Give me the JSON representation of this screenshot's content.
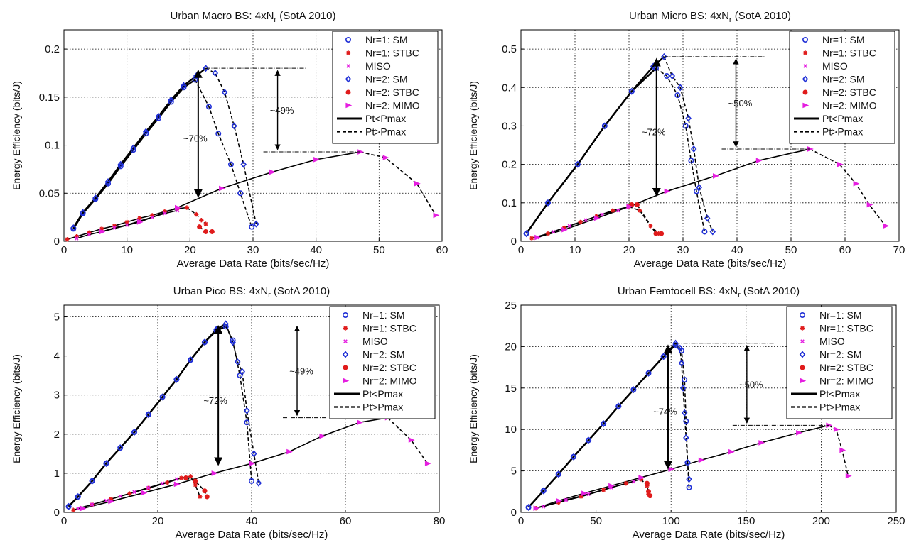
{
  "figure": {
    "colors": {
      "sm": "#1f2fd6",
      "stbc": "#e01b1b",
      "miso": "#e51ee0",
      "mimo": "#e51ee0",
      "line": "#000000",
      "grid": "#000000"
    }
  },
  "chart_data": [
    {
      "type": "line",
      "title": "Urban Macro BS: 4xN",
      "title_sub": "r",
      "title_suffix": " (SotA 2010)",
      "xlabel": "Average Data Rate (bits/sec/Hz)",
      "ylabel": "Energy Efficiency (bits/J)",
      "xlim": [
        0,
        60
      ],
      "ylim": [
        0,
        0.22
      ],
      "xticks": [
        0,
        10,
        20,
        30,
        40,
        50,
        60
      ],
      "xtick_labels": [
        "0",
        "10",
        "20",
        "30",
        "40",
        "50",
        "60"
      ],
      "yticks": [
        0,
        0.05,
        0.1,
        0.15,
        0.2
      ],
      "ytick_labels": [
        "0",
        "0.05",
        "0.1",
        "0.15",
        "0.2"
      ],
      "grid": true,
      "legend_position": "top-right",
      "legend": [
        "Nr=1: SM",
        "Nr=1: STBC",
        "MISO",
        "Nr=2: SM",
        "Nr=2: STBC",
        "Nr=2: MIMO",
        "Pt<Pmax",
        "Pt>Pmax"
      ],
      "annotations": [
        "~70%",
        "~49%"
      ],
      "series": [
        {
          "name": "Nr=1: SM",
          "marker": "circle",
          "color": "#1f2fd6",
          "x": [
            1.5,
            3,
            5,
            7,
            9,
            11,
            13,
            15,
            17,
            19,
            20.8,
            23,
            24.5,
            26.5,
            28,
            29.8
          ],
          "y": [
            0.013,
            0.029,
            0.044,
            0.06,
            0.078,
            0.095,
            0.112,
            0.128,
            0.145,
            0.16,
            0.168,
            0.14,
            0.112,
            0.08,
            0.05,
            0.015
          ]
        },
        {
          "name": "Nr=1: STBC",
          "marker": "star",
          "color": "#e01b1b",
          "x": [
            0.5,
            2,
            4,
            6,
            8,
            10,
            12,
            14,
            16,
            18,
            19.5,
            21,
            21.8,
            22.5
          ],
          "y": [
            0.002,
            0.005,
            0.009,
            0.013,
            0.016,
            0.02,
            0.024,
            0.027,
            0.031,
            0.034,
            0.035,
            0.028,
            0.022,
            0.018
          ]
        },
        {
          "name": "MISO",
          "marker": "x",
          "color": "#e51ee0",
          "x": [
            2,
            4,
            6,
            8,
            10,
            12,
            14,
            16,
            18
          ],
          "y": [
            0.003,
            0.007,
            0.01,
            0.014,
            0.017,
            0.021,
            0.025,
            0.029,
            0.032
          ]
        },
        {
          "name": "Nr=2: SM",
          "marker": "diamond",
          "color": "#1f2fd6",
          "x": [
            1.5,
            3,
            5,
            7,
            9,
            11,
            13,
            15,
            17,
            19,
            21,
            22.5,
            24,
            25.5,
            27,
            28.5,
            30.5
          ],
          "y": [
            0.014,
            0.03,
            0.045,
            0.062,
            0.08,
            0.097,
            0.114,
            0.13,
            0.147,
            0.162,
            0.172,
            0.18,
            0.175,
            0.155,
            0.12,
            0.08,
            0.018
          ]
        },
        {
          "name": "Nr=2: STBC",
          "marker": "dot",
          "color": "#e01b1b",
          "x": [
            21.5,
            22.5,
            23.5
          ],
          "y": [
            0.015,
            0.01,
            0.01
          ]
        },
        {
          "name": "Nr=2: MIMO",
          "marker": "triangle",
          "color": "#e51ee0",
          "x": [
            6,
            12,
            18,
            25,
            33,
            40,
            47,
            51,
            56,
            59
          ],
          "y": [
            0.01,
            0.02,
            0.035,
            0.055,
            0.072,
            0.085,
            0.093,
            0.087,
            0.06,
            0.027
          ]
        }
      ]
    },
    {
      "type": "line",
      "title": "Urban Micro BS: 4xN",
      "title_sub": "r",
      "title_suffix": " (SotA 2010)",
      "xlabel": "Average Data Rate (bits/sec/Hz)",
      "ylabel": "Energy Efficiency (bits/J)",
      "xlim": [
        0,
        70
      ],
      "ylim": [
        0,
        0.55
      ],
      "xticks": [
        0,
        10,
        20,
        30,
        40,
        50,
        60,
        70
      ],
      "xtick_labels": [
        "0",
        "10",
        "20",
        "30",
        "40",
        "50",
        "60",
        "70"
      ],
      "yticks": [
        0,
        0.1,
        0.2,
        0.3,
        0.4,
        0.5
      ],
      "ytick_labels": [
        "0",
        "0.1",
        "0.2",
        "0.3",
        "0.4",
        "0.5"
      ],
      "grid": true,
      "legend_position": "top-right",
      "legend": [
        "Nr=1: SM",
        "Nr=1: STBC",
        "MISO",
        "Nr=2: SM",
        "Nr=2: STBC",
        "Nr=2: MIMO",
        "Pt<Pmax",
        "Pt>Pmax"
      ],
      "annotations": [
        "~72%",
        "~50%"
      ],
      "series": [
        {
          "name": "Nr=1: SM",
          "marker": "circle",
          "color": "#1f2fd6",
          "x": [
            1,
            5,
            10.5,
            15.5,
            20.5,
            25,
            27,
            29,
            30.5,
            31.5,
            32.5,
            34
          ],
          "y": [
            0.02,
            0.1,
            0.2,
            0.3,
            0.39,
            0.45,
            0.43,
            0.38,
            0.3,
            0.21,
            0.13,
            0.025
          ]
        },
        {
          "name": "Nr=1: STBC",
          "marker": "star",
          "color": "#e01b1b",
          "x": [
            2,
            5,
            8,
            11,
            14,
            17,
            20,
            22,
            24,
            25.5
          ],
          "y": [
            0.008,
            0.02,
            0.035,
            0.05,
            0.065,
            0.08,
            0.09,
            0.08,
            0.04,
            0.02
          ]
        },
        {
          "name": "MISO",
          "marker": "x",
          "color": "#e51ee0",
          "x": [
            3,
            6,
            9,
            12,
            15,
            18
          ],
          "y": [
            0.01,
            0.025,
            0.04,
            0.055,
            0.07,
            0.08
          ]
        },
        {
          "name": "Nr=2: SM",
          "marker": "diamond",
          "color": "#1f2fd6",
          "x": [
            1,
            5,
            10.5,
            15.5,
            20.5,
            24.5,
            26.5,
            28,
            29.5,
            31,
            32,
            33,
            34.5,
            35.5
          ],
          "y": [
            0.02,
            0.1,
            0.2,
            0.3,
            0.39,
            0.455,
            0.48,
            0.43,
            0.4,
            0.32,
            0.24,
            0.14,
            0.06,
            0.025
          ]
        },
        {
          "name": "Nr=2: STBC",
          "marker": "dot",
          "color": "#e01b1b",
          "x": [
            20.5,
            21.5,
            25,
            26
          ],
          "y": [
            0.095,
            0.095,
            0.02,
            0.02
          ]
        },
        {
          "name": "Nr=2: MIMO",
          "marker": "triangle",
          "color": "#e51ee0",
          "x": [
            3,
            8,
            14,
            20,
            27,
            36,
            44,
            53.5,
            59,
            62,
            64.5,
            67.5
          ],
          "y": [
            0.01,
            0.03,
            0.06,
            0.09,
            0.13,
            0.17,
            0.21,
            0.24,
            0.2,
            0.15,
            0.095,
            0.04
          ]
        }
      ]
    },
    {
      "type": "line",
      "title": "Urban Pico BS: 4xN",
      "title_sub": "r",
      "title_suffix": " (SotA 2010)",
      "xlabel": "Average Data Rate (bits/sec/Hz)",
      "ylabel": "Energy Efficiency (bits/J)",
      "xlim": [
        0,
        80
      ],
      "ylim": [
        0,
        5.3
      ],
      "xticks": [
        0,
        20,
        40,
        60,
        80
      ],
      "xtick_labels": [
        "0",
        "20",
        "40",
        "60",
        "80"
      ],
      "yticks": [
        0,
        1,
        2,
        3,
        4,
        5
      ],
      "ytick_labels": [
        "0",
        "1",
        "2",
        "3",
        "4",
        "5"
      ],
      "grid": true,
      "legend_position": "top-right",
      "legend": [
        "Nr=1: SM",
        "Nr=1: STBC",
        "MISO",
        "Nr=2: SM",
        "Nr=2: STBC",
        "Nr=2: MIMO",
        "Pt<Pmax",
        "Pt>Pmax"
      ],
      "annotations": [
        "~72%",
        "~49%"
      ],
      "series": [
        {
          "name": "Nr=1: SM",
          "marker": "circle",
          "color": "#1f2fd6",
          "x": [
            1,
            3,
            6,
            9,
            12,
            15,
            18,
            21,
            24,
            27,
            30,
            32.5,
            34.5,
            36,
            37.5,
            39,
            40
          ],
          "y": [
            0.15,
            0.4,
            0.8,
            1.25,
            1.65,
            2.05,
            2.5,
            2.95,
            3.4,
            3.9,
            4.35,
            4.65,
            4.75,
            4.4,
            3.5,
            2.3,
            0.8
          ]
        },
        {
          "name": "Nr=1: STBC",
          "marker": "star",
          "color": "#e01b1b",
          "x": [
            2,
            6,
            10,
            14,
            18,
            22,
            25,
            27,
            28,
            29
          ],
          "y": [
            0.06,
            0.2,
            0.34,
            0.48,
            0.62,
            0.76,
            0.88,
            0.92,
            0.7,
            0.4
          ]
        },
        {
          "name": "MISO",
          "marker": "x",
          "color": "#e51ee0",
          "x": [
            3,
            6,
            9,
            12,
            15,
            18,
            21,
            24
          ],
          "y": [
            0.1,
            0.2,
            0.3,
            0.41,
            0.52,
            0.63,
            0.74,
            0.85
          ]
        },
        {
          "name": "Nr=2: SM",
          "marker": "diamond",
          "color": "#1f2fd6",
          "x": [
            1,
            3,
            6,
            9,
            12,
            15,
            18,
            21,
            24,
            27,
            30,
            32.5,
            34.5,
            36,
            37,
            38,
            39,
            40.5,
            41.5
          ],
          "y": [
            0.15,
            0.4,
            0.8,
            1.25,
            1.65,
            2.05,
            2.5,
            2.95,
            3.4,
            3.9,
            4.35,
            4.68,
            4.82,
            4.35,
            3.85,
            3.6,
            2.6,
            1.5,
            0.75
          ]
        },
        {
          "name": "Nr=2: STBC",
          "marker": "dot",
          "color": "#e01b1b",
          "x": [
            26,
            28,
            30,
            30.5
          ],
          "y": [
            0.88,
            0.8,
            0.55,
            0.4
          ]
        },
        {
          "name": "Nr=2: MIMO",
          "marker": "triangle",
          "color": "#e51ee0",
          "x": [
            4,
            10,
            17,
            24,
            32,
            40,
            48,
            55,
            63,
            69,
            74,
            77.5
          ],
          "y": [
            0.1,
            0.28,
            0.5,
            0.72,
            1.0,
            1.25,
            1.55,
            1.95,
            2.3,
            2.42,
            1.85,
            1.25
          ]
        }
      ]
    },
    {
      "type": "line",
      "title": "Urban Femtocell BS: 4xN",
      "title_sub": "r",
      "title_suffix": " (SotA 2010)",
      "xlabel": "Average Data Rate (bits/sec/Hz)",
      "ylabel": "Energy Efficiency (bits/J)",
      "xlim": [
        0,
        250
      ],
      "ylim": [
        0,
        25
      ],
      "xticks": [
        0,
        50,
        100,
        150,
        200,
        250
      ],
      "xtick_labels": [
        "0",
        "50",
        "100",
        "150",
        "200",
        "250"
      ],
      "yticks": [
        0,
        5,
        10,
        15,
        20,
        25
      ],
      "ytick_labels": [
        "0",
        "5",
        "10",
        "15",
        "20",
        "25"
      ],
      "grid": true,
      "legend_position": "top-right",
      "legend": [
        "Nr=1: SM",
        "Nr=1: STBC",
        "MISO",
        "Nr=2: SM",
        "Nr=2: STBC",
        "Nr=2: MIMO",
        "Pt<Pmax",
        "Pt>Pmax"
      ],
      "annotations": [
        "~74%",
        "~50%"
      ],
      "series": [
        {
          "name": "Nr=1: SM",
          "marker": "circle",
          "color": "#1f2fd6",
          "x": [
            5,
            15,
            25,
            35,
            45,
            55,
            65,
            75,
            85,
            95,
            103,
            107,
            109,
            110,
            111,
            112
          ],
          "y": [
            0.6,
            2.6,
            4.6,
            6.7,
            8.7,
            10.7,
            12.8,
            14.8,
            16.8,
            18.8,
            20.2,
            19.5,
            16,
            11,
            6,
            3
          ]
        },
        {
          "name": "Nr=1: STBC",
          "marker": "star",
          "color": "#e01b1b",
          "x": [
            10,
            25,
            40,
            55,
            70,
            80,
            84,
            85
          ],
          "y": [
            0.5,
            1.2,
            1.9,
            2.7,
            3.5,
            4.0,
            3.2,
            2.2
          ]
        },
        {
          "name": "MISO",
          "marker": "x",
          "color": "#e51ee0",
          "x": [
            15,
            30,
            45,
            60,
            75
          ],
          "y": [
            0.7,
            1.5,
            2.2,
            3.0,
            3.7
          ]
        },
        {
          "name": "Nr=2: SM",
          "marker": "diamond",
          "color": "#1f2fd6",
          "x": [
            5,
            15,
            25,
            35,
            45,
            55,
            65,
            75,
            85,
            95,
            103,
            106,
            107,
            108,
            109,
            110,
            111,
            112
          ],
          "y": [
            0.6,
            2.6,
            4.6,
            6.7,
            8.7,
            10.7,
            12.8,
            14.8,
            16.8,
            18.8,
            20.4,
            19.8,
            18,
            15,
            12,
            9,
            6,
            4
          ]
        },
        {
          "name": "Nr=2: STBC",
          "marker": "dot",
          "color": "#e01b1b",
          "x": [
            84,
            85,
            86
          ],
          "y": [
            3.5,
            2.5,
            2.0
          ]
        },
        {
          "name": "Nr=2: MIMO",
          "marker": "triangle",
          "color": "#e51ee0",
          "x": [
            10,
            25,
            42,
            60,
            80,
            100,
            120,
            140,
            160,
            185,
            205,
            210,
            214,
            218
          ],
          "y": [
            0.5,
            1.4,
            2.3,
            3.2,
            4.2,
            5.2,
            6.3,
            7.3,
            8.4,
            9.6,
            10.5,
            10.0,
            7.5,
            4.4
          ]
        }
      ]
    }
  ]
}
